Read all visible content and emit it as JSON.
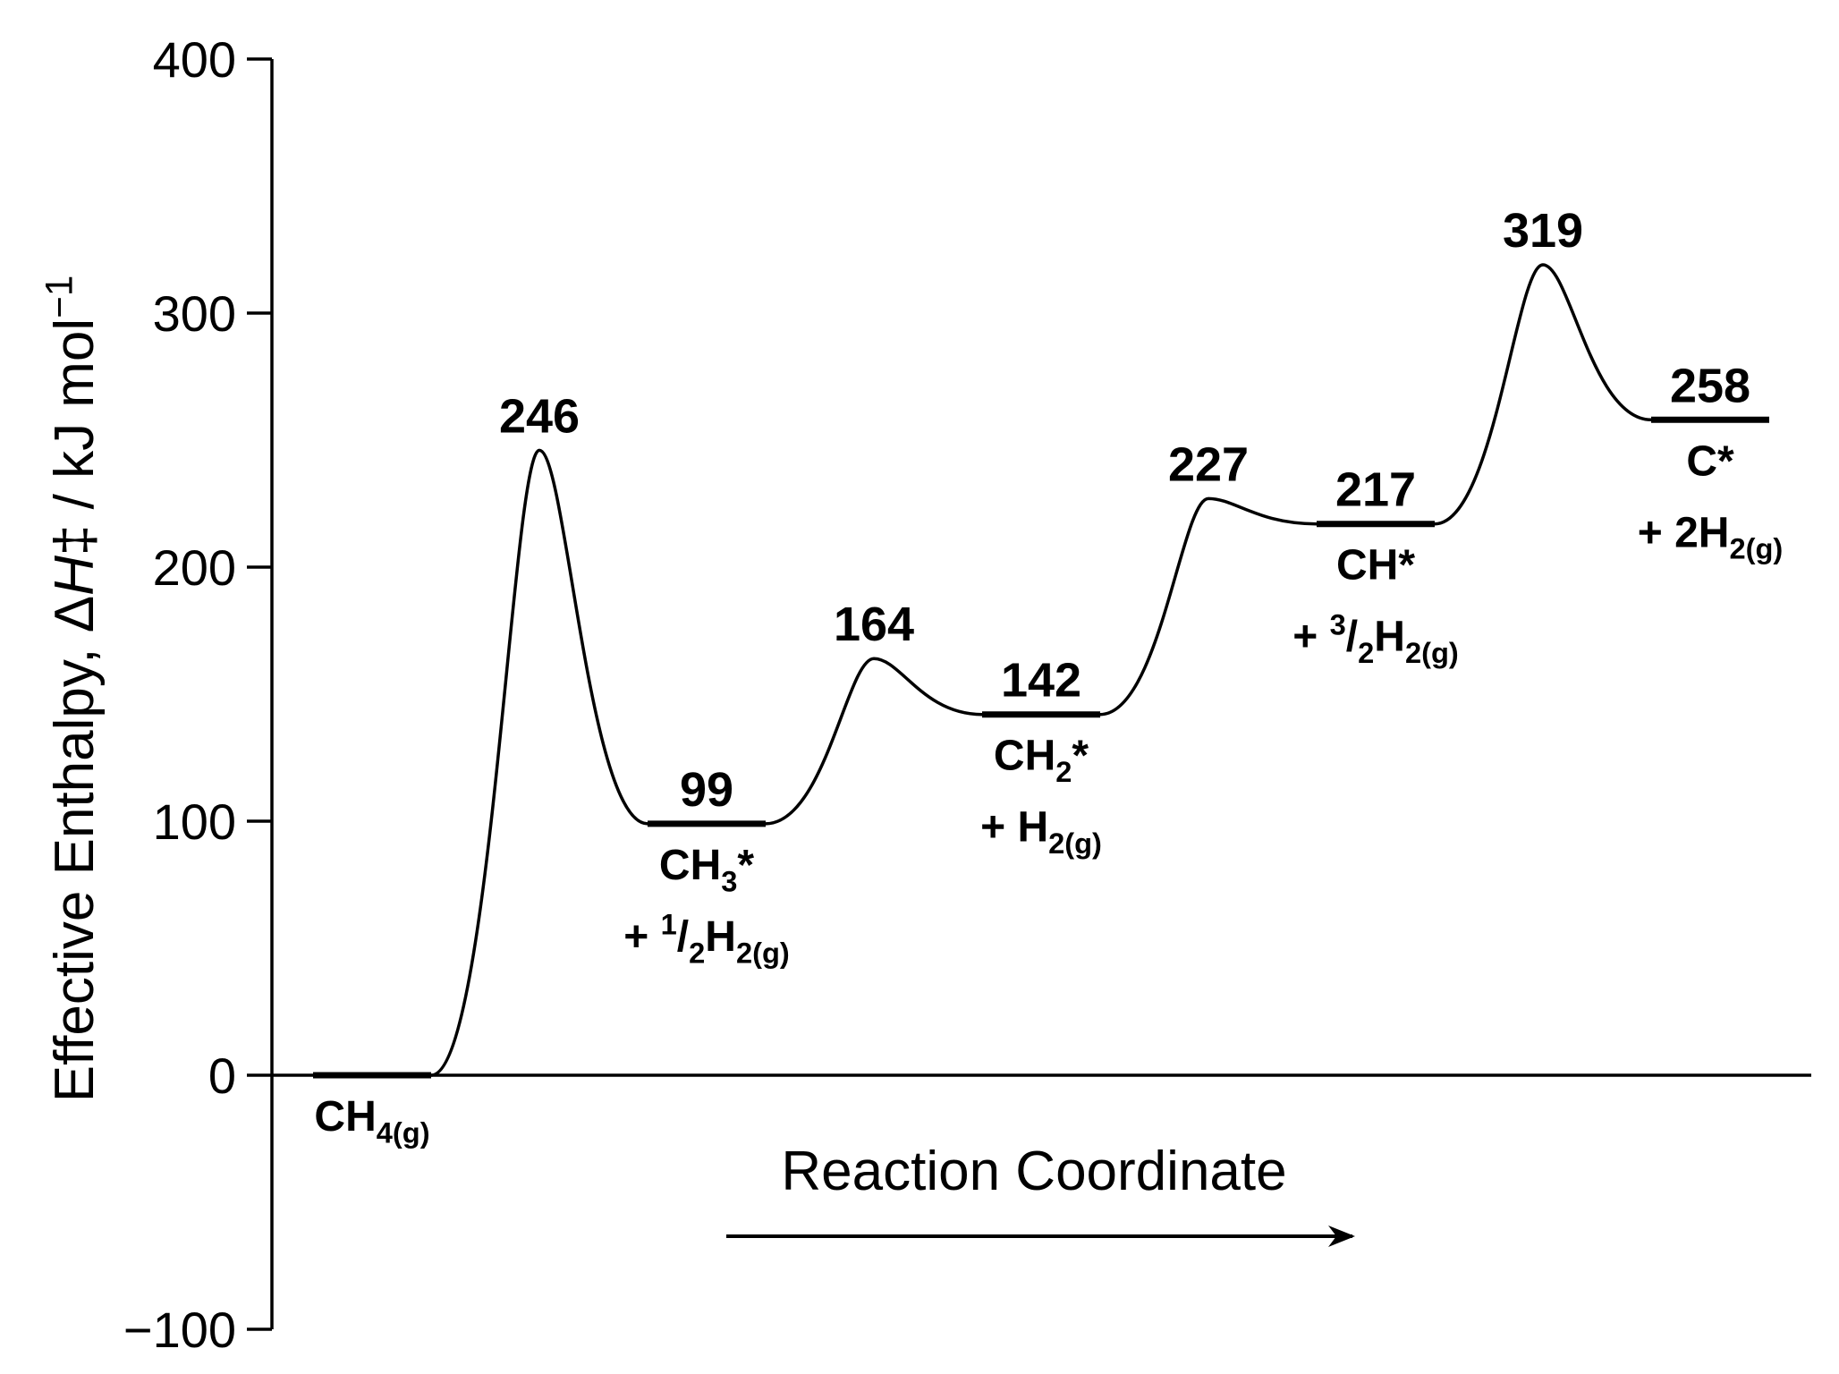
{
  "chart_data": {
    "type": "energy-profile",
    "y_label": [
      {
        "text": "Effective Enthalpy, Δ"
      },
      {
        "text": "H",
        "style": "italic"
      },
      {
        "text": "‡ / kJ mol"
      },
      {
        "text": "−1",
        "style": "sup"
      }
    ],
    "x_label": "Reaction Coordinate",
    "values": [
      0,
      246,
      99,
      164,
      142,
      227,
      217,
      319,
      258
    ],
    "value_labels": [
      null,
      "246",
      "99",
      "164",
      "142",
      "227",
      "217",
      "319",
      "258"
    ],
    "species": [
      [
        [
          {
            "text": "CH"
          },
          {
            "text": "4(g)",
            "style": "sub"
          }
        ]
      ],
      null,
      [
        [
          {
            "text": "CH"
          },
          {
            "text": "3",
            "style": "sub"
          },
          {
            "text": "*"
          }
        ],
        [
          {
            "text": "+ "
          },
          {
            "text": "1",
            "style": "sup"
          },
          {
            "text": "/"
          },
          {
            "text": "2",
            "style": "sub"
          },
          {
            "text": "H"
          },
          {
            "text": "2(g)",
            "style": "sub"
          }
        ]
      ],
      null,
      [
        [
          {
            "text": "CH"
          },
          {
            "text": "2",
            "style": "sub"
          },
          {
            "text": "*"
          }
        ],
        [
          {
            "text": "+ H"
          },
          {
            "text": "2(g)",
            "style": "sub"
          }
        ]
      ],
      null,
      [
        [
          {
            "text": "CH*"
          }
        ],
        [
          {
            "text": "+ "
          },
          {
            "text": "3",
            "style": "sup"
          },
          {
            "text": "/"
          },
          {
            "text": "2",
            "style": "sub"
          },
          {
            "text": "H"
          },
          {
            "text": "2(g)",
            "style": "sub"
          }
        ]
      ],
      null,
      [
        [
          {
            "text": "C*"
          }
        ],
        [
          {
            "text": "+ 2H"
          },
          {
            "text": "2(g)",
            "style": "sub"
          }
        ]
      ]
    ],
    "ylim": [
      -100,
      400
    ],
    "yticks": [
      {
        "value": -100,
        "label": "−100"
      },
      0,
      100,
      200,
      300,
      400
    ],
    "color": "#000000"
  }
}
